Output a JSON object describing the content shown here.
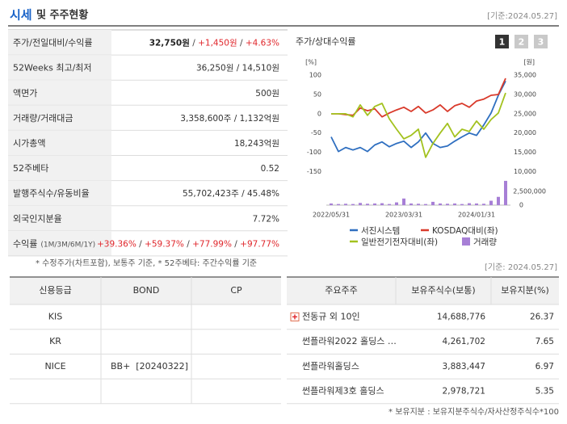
{
  "header": {
    "title_highlight": "시세",
    "title_rest": "및 주주현황",
    "date": "[기준:2024.05.27]"
  },
  "quote_table": {
    "rows": [
      {
        "label": "주가/전일대비/수익률",
        "value": [
          {
            "text": "32,750원",
            "color": "#222222",
            "weight": "bold"
          },
          {
            "text": " / ",
            "color": "#444444"
          },
          {
            "text": "+1,450원",
            "color": "#e0262b"
          },
          {
            "text": " / ",
            "color": "#444444"
          },
          {
            "text": "+4.63%",
            "color": "#e0262b"
          }
        ]
      },
      {
        "label": "52Weeks 최고/최저",
        "value": [
          {
            "text": "36,250원 / 14,510원",
            "color": "#333333"
          }
        ]
      },
      {
        "label": "액면가",
        "value": [
          {
            "text": "500원",
            "color": "#333333"
          }
        ]
      },
      {
        "label": "거래량/거래대금",
        "value": [
          {
            "text": "3,358,600주 / 1,132억원",
            "color": "#333333"
          }
        ]
      },
      {
        "label": "시가총액",
        "value": [
          {
            "text": "18,243억원",
            "color": "#333333"
          }
        ]
      },
      {
        "label": "52주베타",
        "value": [
          {
            "text": "0.52",
            "color": "#333333"
          }
        ]
      },
      {
        "label": "발행주식수/유동비율",
        "value": [
          {
            "text": "55,702,423주 / 45.48%",
            "color": "#333333"
          }
        ]
      },
      {
        "label": "외국인지분율",
        "value": [
          {
            "text": "7.72%",
            "color": "#333333"
          }
        ]
      },
      {
        "label": "수익률",
        "sublabel": "(1M/3M/6M/1Y)",
        "value": [
          {
            "text": "+39.36%",
            "color": "#e0262b"
          },
          {
            "text": " / ",
            "color": "#444444"
          },
          {
            "text": "+59.37%",
            "color": "#e0262b"
          },
          {
            "text": " / ",
            "color": "#444444"
          },
          {
            "text": "+77.99%",
            "color": "#e0262b"
          },
          {
            "text": " / ",
            "color": "#444444"
          },
          {
            "text": "+97.77%",
            "color": "#e0262b"
          }
        ]
      }
    ],
    "note": "* 수정주가(차트포함), 보통주 기준, * 52주베타: 주간수익률 기준"
  },
  "price_chart": {
    "title": "주가/상대수익률",
    "buttons": [
      "1",
      "2",
      "3"
    ],
    "active_button": 0,
    "left_unit": "[%]",
    "right_unit": "[원]",
    "categories": [
      "2022/05/31",
      null,
      null,
      null,
      null,
      null,
      null,
      null,
      null,
      null,
      "2023/03/31",
      null,
      null,
      null,
      null,
      null,
      null,
      null,
      null,
      null,
      "2024/01/31",
      null,
      null,
      null,
      null
    ],
    "ylim": [
      -170,
      115
    ],
    "yticks": [
      100,
      50,
      0,
      -50,
      -100,
      -150
    ],
    "y2lim": [
      8000,
      36500
    ],
    "y2ticks": [
      {
        "value": 35000,
        "label": "35,000"
      },
      {
        "value": 30000,
        "label": "30,000"
      },
      {
        "value": 25000,
        "label": "25,000"
      },
      {
        "value": 20000,
        "label": "20,000"
      },
      {
        "value": 15000,
        "label": "15,000"
      },
      {
        "value": 10000,
        "label": "10,000"
      }
    ],
    "volume_lim": [
      0,
      6000000
    ],
    "volume_ticks": [
      {
        "value": 2500000,
        "label": "2,500,000"
      },
      0
    ],
    "series": [
      {
        "name": "서진시스템",
        "color": "#2f6fc0",
        "axis": "y2",
        "values": [
          19000,
          15200,
          16250,
          15600,
          16250,
          15200,
          16900,
          17700,
          16450,
          17300,
          17900,
          16250,
          17700,
          20000,
          17300,
          16250,
          16650,
          17900,
          19000,
          20000,
          19400,
          22100,
          25200,
          29800,
          33500
        ]
      },
      {
        "name": "KOSDAQ대비(좌)",
        "color": "#d93a2b",
        "values": [
          0,
          0,
          -2,
          -4,
          15,
          8,
          13,
          -8,
          2,
          10,
          17,
          6,
          19,
          2,
          10,
          23,
          6,
          21,
          27,
          17,
          33,
          38,
          48,
          50,
          92
        ]
      },
      {
        "name": "일반전기전자대비(좌)",
        "color": "#a3c21f",
        "values": [
          0,
          0,
          0,
          -8,
          23,
          -4,
          19,
          27,
          -13,
          -40,
          -65,
          -56,
          -40,
          -113,
          -77,
          -50,
          -25,
          -60,
          -40,
          -46,
          -19,
          -40,
          -15,
          2,
          54
        ]
      },
      {
        "name": "거래량",
        "color": "#a77fd6",
        "type": "bar",
        "axis": "volume",
        "values": [
          300000,
          200000,
          250000,
          200000,
          400000,
          250000,
          300000,
          350000,
          200000,
          500000,
          1200000,
          300000,
          250000,
          200000,
          600000,
          300000,
          250000,
          300000,
          200000,
          350000,
          300000,
          250000,
          800000,
          1500000,
          4400000
        ]
      }
    ]
  },
  "credit_table": {
    "headers": [
      "신용등급",
      "BOND",
      "CP"
    ],
    "rows": [
      [
        "KIS"
      ],
      [
        "KR"
      ],
      [
        "NICE",
        "BB+  [20240322]"
      ]
    ]
  },
  "shareholders": {
    "date": "[기준: 2024.05.27]",
    "headers": [
      "주요주주",
      "보유주식수(보통)",
      "보유지분(%)"
    ],
    "rows": [
      [
        "전동규 외 10인",
        "14,688,776",
        "26.37"
      ],
      [
        "썬플라워2022 홀딩스 …",
        "4,261,702",
        "7.65"
      ],
      [
        "썬플라워홀딩스",
        "3,883,447",
        "6.97"
      ],
      [
        "썬플라워제3호 홀딩스",
        "2,978,721",
        "5.35"
      ]
    ],
    "note": "* 보유지분 : 보유지분주식수/자사산정주식수*100"
  }
}
